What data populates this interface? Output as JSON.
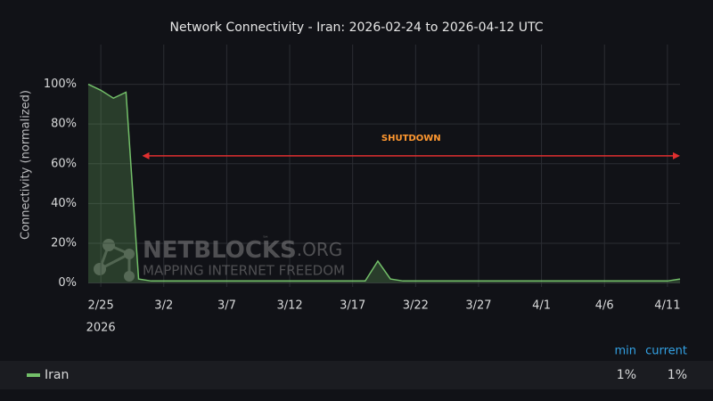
{
  "chart_data": {
    "type": "line",
    "title": "Network Connectivity - Iran: 2026-02-24 to 2026-04-12 UTC",
    "y_label": "Connectivity (normalized)",
    "x": [
      "2026-02-24",
      "2026-02-25",
      "2026-02-26",
      "2026-02-27",
      "2026-02-28",
      "2026-03-01",
      "2026-03-02",
      "2026-03-03",
      "2026-03-04",
      "2026-03-05",
      "2026-03-06",
      "2026-03-07",
      "2026-03-08",
      "2026-03-09",
      "2026-03-10",
      "2026-03-11",
      "2026-03-12",
      "2026-03-13",
      "2026-03-14",
      "2026-03-15",
      "2026-03-16",
      "2026-03-17",
      "2026-03-18",
      "2026-03-19",
      "2026-03-20",
      "2026-03-21",
      "2026-03-22",
      "2026-03-23",
      "2026-03-24",
      "2026-03-25",
      "2026-03-26",
      "2026-03-27",
      "2026-03-28",
      "2026-03-29",
      "2026-03-30",
      "2026-03-31",
      "2026-04-01",
      "2026-04-02",
      "2026-04-03",
      "2026-04-04",
      "2026-04-05",
      "2026-04-06",
      "2026-04-07",
      "2026-04-08",
      "2026-04-09",
      "2026-04-10",
      "2026-04-11",
      "2026-04-12"
    ],
    "series": [
      {
        "name": "Iran",
        "color": "#73bf69",
        "values": [
          100,
          97,
          93,
          96,
          2,
          1,
          1,
          1,
          1,
          1,
          1,
          1,
          1,
          1,
          1,
          1,
          1,
          1,
          1,
          1,
          1,
          1,
          1,
          11,
          2,
          1,
          1,
          1,
          1,
          1,
          1,
          1,
          1,
          1,
          1,
          1,
          1,
          1,
          1,
          1,
          1,
          1,
          1,
          1,
          1,
          1,
          1,
          2
        ],
        "stats": [
          "1%",
          "1%"
        ]
      }
    ],
    "legend_headers": [
      "min",
      "current"
    ],
    "fill_area": true,
    "grid": true,
    "xlim": [
      "2026-02-24",
      "2026-04-12"
    ],
    "xticks": [
      {
        "value": "2026-02-25",
        "label": "2/25"
      },
      {
        "value": "2026-03-02",
        "label": "3/2"
      },
      {
        "value": "2026-03-07",
        "label": "3/7"
      },
      {
        "value": "2026-03-12",
        "label": "3/12"
      },
      {
        "value": "2026-03-17",
        "label": "3/17"
      },
      {
        "value": "2026-03-22",
        "label": "3/22"
      },
      {
        "value": "2026-03-27",
        "label": "3/27"
      },
      {
        "value": "2026-04-01",
        "label": "4/1"
      },
      {
        "value": "2026-04-06",
        "label": "4/6"
      },
      {
        "value": "2026-04-11",
        "label": "4/11"
      }
    ],
    "x_year_label": "2026",
    "ylim": [
      -2,
      120
    ],
    "yticks": [
      {
        "value": 0,
        "label": "0%"
      },
      {
        "value": 20,
        "label": "20%"
      },
      {
        "value": 40,
        "label": "40%"
      },
      {
        "value": 60,
        "label": "60%"
      },
      {
        "value": 80,
        "label": "80%"
      },
      {
        "value": 100,
        "label": "100%"
      }
    ],
    "annotation": {
      "text": "SHUTDOWN",
      "color": "#e02f2f",
      "text_color": "#ff9830",
      "y": 64,
      "x": [
        "2026-02-28",
        "2026-04-12"
      ]
    },
    "watermark": {
      "name": "NETBLOCKS",
      "suffix": ".ORG",
      "tm": "™",
      "tagline": "MAPPING INTERNET FREEDOM"
    }
  }
}
